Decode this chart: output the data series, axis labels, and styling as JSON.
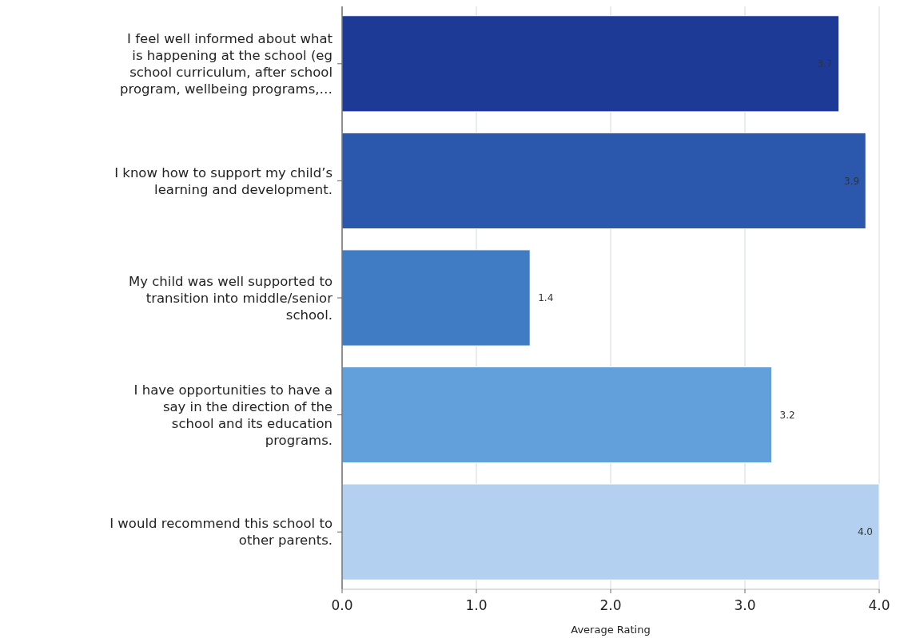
{
  "chart_data": {
    "type": "bar",
    "orientation": "horizontal",
    "categories": [
      "I feel well informed about what is happening at the school (eg school curriculum, after school program, wellbeing programs,…",
      "I know how to support my child’s learning and development.",
      "My child was well supported to transition into middle/senior school.",
      "I have opportunities to have a say in the direction of the school and its education programs.",
      "I would recommend this school to other parents."
    ],
    "values": [
      3.7,
      3.9,
      1.4,
      3.2,
      4.0
    ],
    "colors": [
      "#1c3a96",
      "#2b57ad",
      "#3f7cc4",
      "#62a0dc",
      "#b4d0f0"
    ],
    "value_labels": [
      "3.7",
      "3.9",
      "1.4",
      "3.2",
      "4.0"
    ],
    "xlim": [
      0,
      4
    ],
    "xticks": [
      {
        "value": 0,
        "label": "0.0"
      },
      {
        "value": 1,
        "label": "1.0"
      },
      {
        "value": 2,
        "label": "2.0"
      },
      {
        "value": 3,
        "label": "3.0"
      },
      {
        "value": 4,
        "label": "4.0"
      }
    ],
    "xlabel": "Average Rating",
    "grid": "x"
  }
}
